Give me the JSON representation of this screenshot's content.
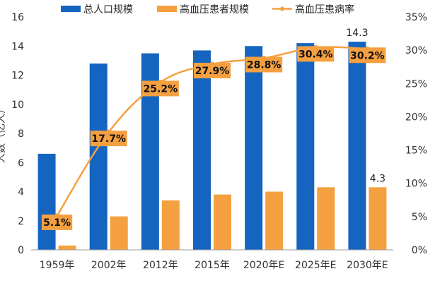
{
  "chart_data": {
    "type": "bar",
    "categories": [
      "1959年",
      "2002年",
      "2012年",
      "2015年",
      "2020年E",
      "2025年E",
      "2030年E"
    ],
    "series": [
      {
        "name": "总人口规模",
        "kind": "bar",
        "axis": "left",
        "color": "#1565C0",
        "values": [
          6.6,
          12.8,
          13.5,
          13.7,
          14.0,
          14.2,
          14.3
        ]
      },
      {
        "name": "高血压患者规模",
        "kind": "bar",
        "axis": "left",
        "color": "#F5A040",
        "values": [
          0.3,
          2.3,
          3.4,
          3.8,
          4.0,
          4.3,
          4.3
        ]
      },
      {
        "name": "高血压患病率",
        "kind": "line",
        "axis": "right",
        "color": "#F5A040",
        "values": [
          5.1,
          17.7,
          25.2,
          27.9,
          28.8,
          30.4,
          30.2
        ]
      }
    ],
    "value_labels": [
      {
        "series": 0,
        "index": 6,
        "text": "14.3"
      },
      {
        "series": 1,
        "index": 6,
        "text": "4.3"
      }
    ],
    "rate_labels": [
      "5.1%",
      "17.7%",
      "25.2%",
      "27.9%",
      "28.8%",
      "30.4%",
      "30.2%"
    ],
    "ylabel": "人数（亿人）",
    "ylim": [
      0,
      16
    ],
    "yticks": [
      "0",
      "2",
      "4",
      "6",
      "8",
      "10",
      "12",
      "14",
      "16"
    ],
    "y2lim": [
      0,
      35
    ],
    "y2ticks": [
      "0%",
      "5%",
      "10%",
      "15%",
      "20%",
      "25%",
      "30%",
      "35%"
    ],
    "legend_position": "top",
    "grid": false
  }
}
